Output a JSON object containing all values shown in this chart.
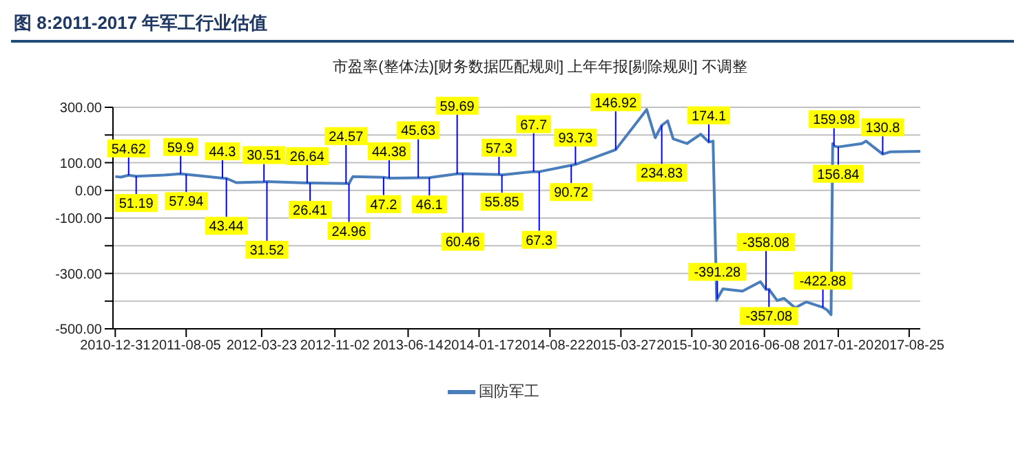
{
  "chart_data": {
    "type": "line",
    "title": "图 8:2011-2017 年军工行业估值",
    "subtitle": "市盈率(整体法)[财务数据匹配规则] 上年年报[剔除规则] 不调整",
    "x": [
      "2010-12-31",
      "2011-01-17",
      "2011-02-10",
      "2011-03-05",
      "2011-05-29",
      "2011-07-19",
      "2011-08-05",
      "2011-11-24",
      "2011-12-06",
      "2012-01-05",
      "2012-03-30",
      "2012-04-08",
      "2012-08-09",
      "2012-08-18",
      "2012-12-06",
      "2012-12-15",
      "2012-12-27",
      "2013-03-31",
      "2013-04-17",
      "2013-07-15",
      "2013-08-18",
      "2013-11-11",
      "2013-11-28",
      "2014-03-19",
      "2014-03-28",
      "2014-04-23",
      "2014-07-03",
      "2014-07-20",
      "2014-10-26",
      "2014-11-08",
      "2015-03-11",
      "2015-06-14",
      "2015-07-10",
      "2015-07-30",
      "2015-08-17",
      "2015-09-03",
      "2015-10-15",
      "2015-11-26",
      "2015-12-21",
      "2016-01-03",
      "2016-01-14",
      "2016-01-16",
      "2016-02-02",
      "2016-04-02",
      "2016-05-27",
      "2016-06-13",
      "2016-06-22",
      "2016-07-17",
      "2016-08-07",
      "2016-09-10",
      "2016-10-14",
      "2016-12-04",
      "2016-12-17",
      "2016-12-29",
      "2017-01-03",
      "2017-01-07",
      "2017-01-20",
      "2017-04-02",
      "2017-04-15",
      "2017-06-05",
      "2017-06-27",
      "2017-09-28"
    ],
    "series": [
      {
        "name": "国防军工",
        "color": "#4a7ebb",
        "values": [
          50,
          48,
          54.62,
          51.19,
          55,
          59.9,
          57.94,
          44.3,
          43.44,
          28,
          30.51,
          31.52,
          26.64,
          26.41,
          24.57,
          24.96,
          50,
          47.2,
          44.38,
          45.63,
          46.1,
          59.69,
          60.46,
          57.3,
          55.85,
          59,
          67.7,
          67.3,
          90.72,
          93.73,
          146.92,
          292,
          190,
          234.83,
          251,
          186,
          169,
          203,
          174.1,
          178,
          -398,
          -391.28,
          -356,
          -364,
          -330,
          -358.08,
          -357.08,
          -398,
          -390,
          -424,
          -403,
          -422.88,
          -432,
          -449,
          169,
          159.98,
          156.84,
          169,
          178,
          130.8,
          139,
          141
        ],
        "value_labels": [
          null,
          null,
          "54.62",
          "51.19",
          null,
          "59.9",
          "57.94",
          "44.3",
          "43.44",
          null,
          "30.51",
          "31.52",
          "26.64",
          "26.41",
          "24.57",
          "24.96",
          null,
          "47.2",
          "44.38",
          "45.63",
          "46.1",
          "59.69",
          "60.46",
          "57.3",
          "55.85",
          null,
          "67.7",
          "67.3",
          "90.72",
          "93.73",
          "146.92",
          null,
          null,
          "234.83",
          null,
          null,
          null,
          null,
          "174.1",
          null,
          null,
          "-391.28",
          null,
          null,
          null,
          "-358.08",
          "-357.08",
          null,
          null,
          null,
          null,
          "-422.88",
          null,
          null,
          null,
          "159.98",
          "156.84",
          null,
          null,
          "130.8",
          null,
          null
        ]
      }
    ],
    "xlim": [
      "2010-12-24",
      "2017-09-28"
    ],
    "xticks": [
      "2010-12-31",
      "2011-08-05",
      "2012-03-23",
      "2012-11-02",
      "2013-06-14",
      "2014-01-17",
      "2014-08-22",
      "2015-03-27",
      "2015-10-30",
      "2016-06-08",
      "2017-01-20",
      "2017-08-25"
    ],
    "ylim": [
      -500,
      300
    ],
    "yticks": [
      {
        "value": -500,
        "label": "-500.00"
      },
      {
        "value": -400,
        "label": null
      },
      {
        "value": -300,
        "label": "-300.00"
      },
      {
        "value": -200,
        "label": null
      },
      {
        "value": -100,
        "label": "-100.00"
      },
      {
        "value": 0,
        "label": "0.00"
      },
      {
        "value": 100,
        "label": "100.00"
      },
      {
        "value": 200,
        "label": null
      },
      {
        "value": 300,
        "label": "300.00"
      }
    ],
    "grid": "y",
    "legend": "bottom",
    "marker": "none",
    "line_style": "solid"
  }
}
